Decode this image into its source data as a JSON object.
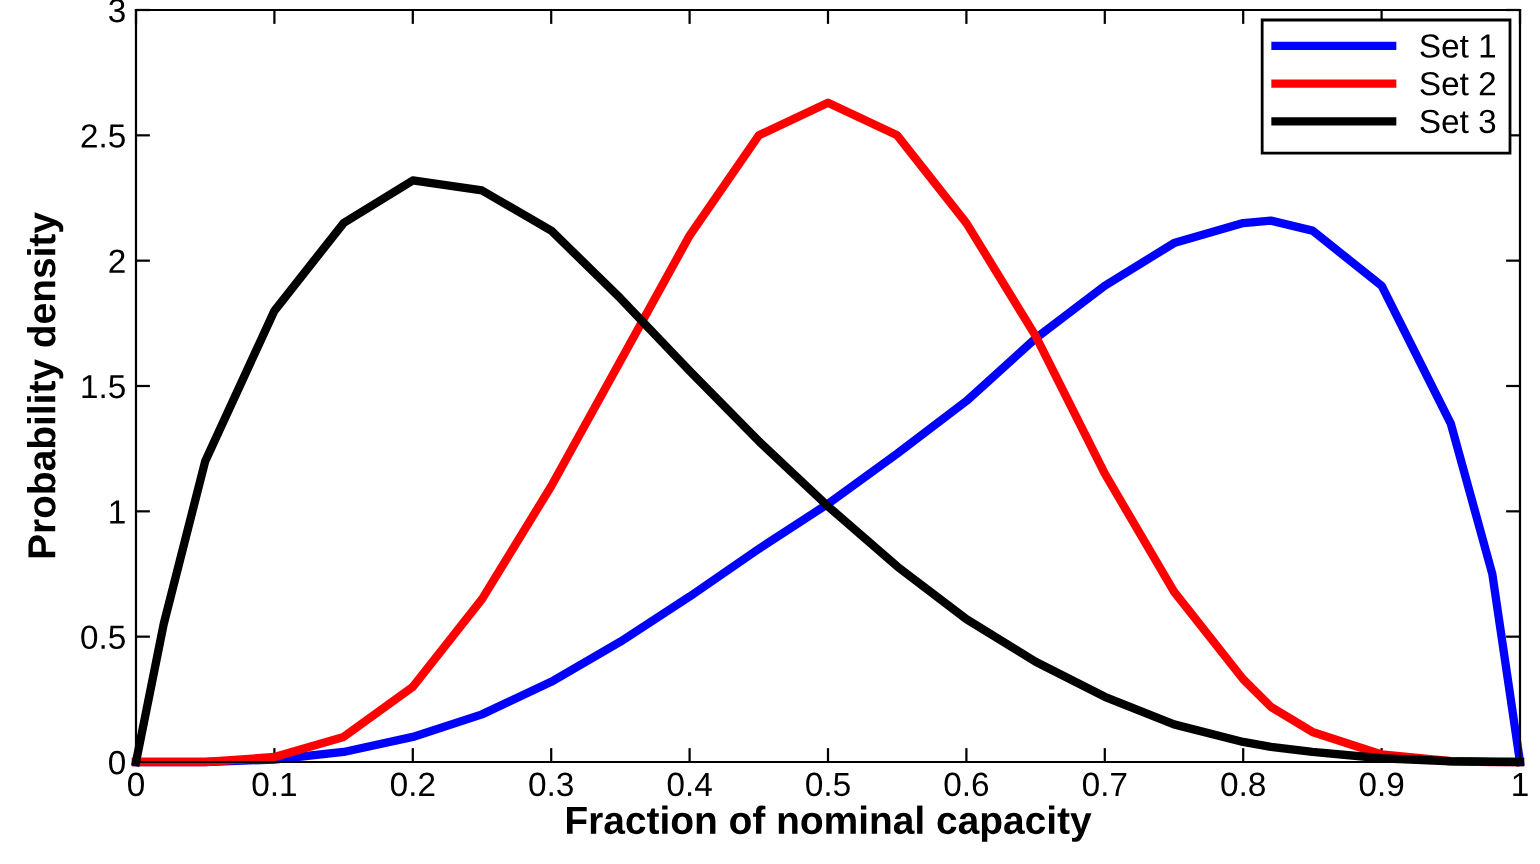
{
  "chart_data": {
    "type": "line",
    "xlabel": "Fraction of nominal capacity",
    "ylabel": "Probability density",
    "x": [
      0,
      0.02,
      0.05,
      0.1,
      0.15,
      0.2,
      0.25,
      0.3,
      0.35,
      0.4,
      0.45,
      0.5,
      0.55,
      0.6,
      0.65,
      0.7,
      0.75,
      0.8,
      0.82,
      0.85,
      0.9,
      0.95,
      0.98,
      1.0
    ],
    "series": [
      {
        "name": "Set 1",
        "color": "#0000ff",
        "values": [
          0,
          0,
          0,
          0.01,
          0.04,
          0.1,
          0.19,
          0.32,
          0.48,
          0.66,
          0.85,
          1.03,
          1.23,
          1.44,
          1.69,
          1.9,
          2.07,
          2.15,
          2.16,
          2.12,
          1.9,
          1.35,
          0.75,
          0
        ]
      },
      {
        "name": "Set 2",
        "color": "#ff0000",
        "values": [
          0,
          0,
          0,
          0.02,
          0.1,
          0.3,
          0.65,
          1.1,
          1.6,
          2.1,
          2.5,
          2.63,
          2.5,
          2.15,
          1.7,
          1.15,
          0.68,
          0.33,
          0.22,
          0.12,
          0.03,
          0.003,
          0,
          0
        ]
      },
      {
        "name": "Set 3",
        "color": "#000000",
        "values": [
          0,
          0.55,
          1.2,
          1.8,
          2.15,
          2.32,
          2.28,
          2.12,
          1.85,
          1.56,
          1.28,
          1.02,
          0.78,
          0.57,
          0.4,
          0.26,
          0.15,
          0.08,
          0.06,
          0.04,
          0.015,
          0.003,
          0.001,
          0
        ]
      }
    ],
    "xlim": [
      0,
      1
    ],
    "ylim": [
      0,
      3
    ],
    "xticks": [
      0,
      0.1,
      0.2,
      0.3,
      0.4,
      0.5,
      0.6,
      0.7,
      0.8,
      0.9,
      1
    ],
    "yticks": [
      0,
      0.5,
      1,
      1.5,
      2,
      2.5,
      3
    ],
    "legend": "top right",
    "grid": false,
    "marker": "none",
    "line_style": "solid"
  }
}
